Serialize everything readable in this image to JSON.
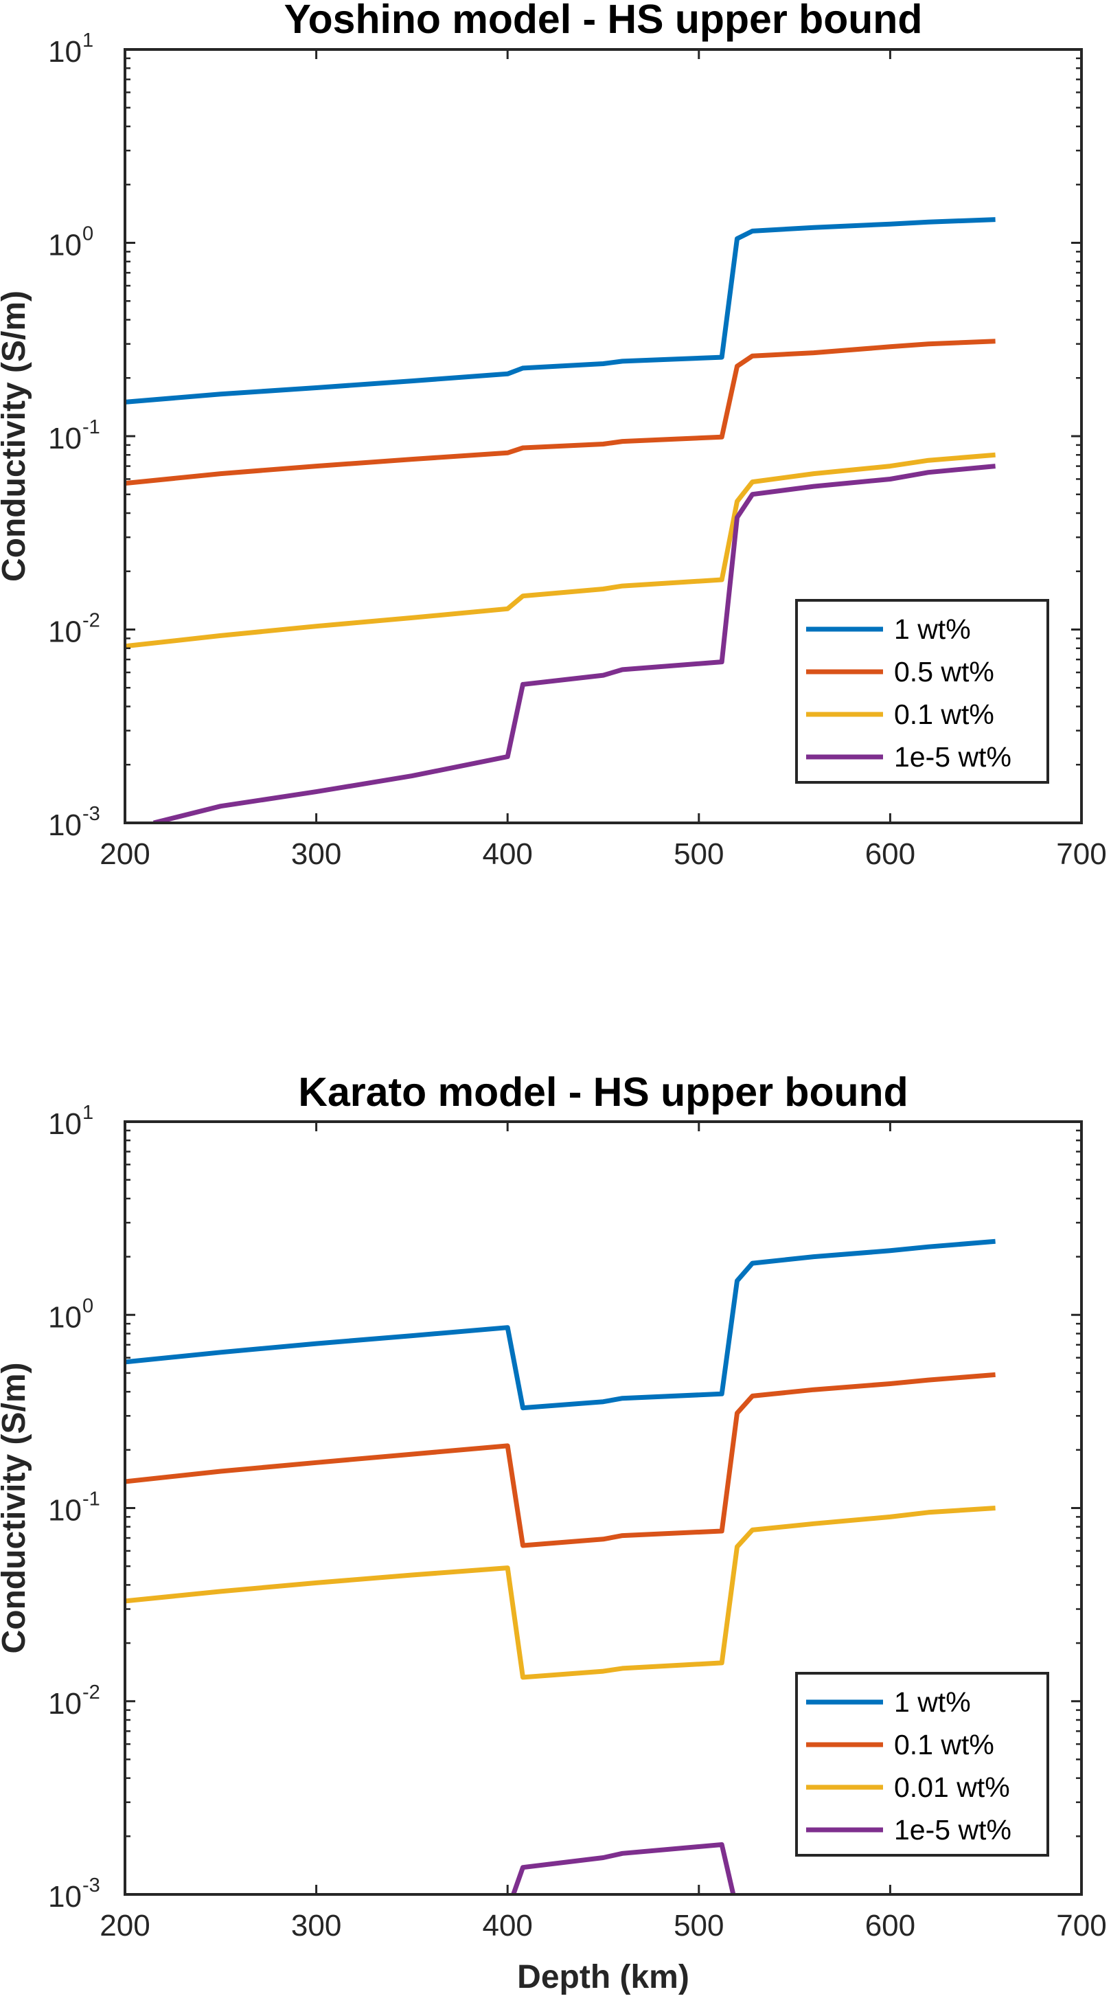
{
  "chart_data": [
    {
      "type": "line",
      "title": "Yoshino model - HS upper bound",
      "xlabel": "",
      "ylabel": "Conductivity (S/m)",
      "xlim": [
        200,
        700
      ],
      "ylim": [
        0.001,
        10
      ],
      "yscale": "log",
      "xticks": [
        "200",
        "300",
        "400",
        "500",
        "600",
        "700"
      ],
      "yticks": [
        {
          "base": "10",
          "exp": "-3"
        },
        {
          "base": "10",
          "exp": "-2"
        },
        {
          "base": "10",
          "exp": "-1"
        },
        {
          "base": "10",
          "exp": "0"
        },
        {
          "base": "10",
          "exp": "1"
        }
      ],
      "grid": false,
      "legend_position": "bottom-right",
      "series": [
        {
          "name": "1 wt%",
          "color": "#0072BD",
          "x": [
            200,
            250,
            300,
            350,
            400,
            408,
            450,
            460,
            512,
            520,
            528,
            560,
            600,
            620,
            655
          ],
          "y": [
            0.15,
            0.165,
            0.178,
            0.193,
            0.21,
            0.225,
            0.237,
            0.244,
            0.256,
            1.05,
            1.15,
            1.2,
            1.25,
            1.28,
            1.32
          ]
        },
        {
          "name": "0.5 wt%",
          "color": "#D95319",
          "x": [
            200,
            250,
            300,
            350,
            400,
            408,
            450,
            460,
            512,
            520,
            528,
            560,
            600,
            620,
            655
          ],
          "y": [
            0.057,
            0.064,
            0.07,
            0.076,
            0.082,
            0.087,
            0.091,
            0.094,
            0.099,
            0.23,
            0.26,
            0.27,
            0.29,
            0.3,
            0.31
          ]
        },
        {
          "name": "0.1 wt%",
          "color": "#EDB120",
          "x": [
            200,
            250,
            300,
            350,
            400,
            408,
            450,
            460,
            512,
            520,
            528,
            560,
            600,
            620,
            655
          ],
          "y": [
            0.0082,
            0.0093,
            0.0104,
            0.0115,
            0.0128,
            0.0149,
            0.0162,
            0.0168,
            0.0181,
            0.046,
            0.058,
            0.064,
            0.07,
            0.075,
            0.08
          ]
        },
        {
          "name": "1e-5 wt%",
          "color": "#7E2F8E",
          "x": [
            215,
            250,
            300,
            350,
            400,
            408,
            450,
            460,
            512,
            520,
            528,
            560,
            600,
            620,
            655
          ],
          "y": [
            0.001,
            0.00122,
            0.00145,
            0.00175,
            0.0022,
            0.0052,
            0.0058,
            0.0062,
            0.0068,
            0.038,
            0.05,
            0.055,
            0.06,
            0.065,
            0.07
          ]
        }
      ]
    },
    {
      "type": "line",
      "title": "Karato model - HS upper bound",
      "xlabel": "Depth (km)",
      "ylabel": "Conductivity (S/m)",
      "xlim": [
        200,
        700
      ],
      "ylim": [
        0.001,
        10
      ],
      "yscale": "log",
      "xticks": [
        "200",
        "300",
        "400",
        "500",
        "600",
        "700"
      ],
      "yticks": [
        {
          "base": "10",
          "exp": "-3"
        },
        {
          "base": "10",
          "exp": "-2"
        },
        {
          "base": "10",
          "exp": "-1"
        },
        {
          "base": "10",
          "exp": "0"
        },
        {
          "base": "10",
          "exp": "1"
        }
      ],
      "grid": false,
      "legend_position": "bottom-right",
      "series": [
        {
          "name": "1 wt%",
          "color": "#0072BD",
          "x": [
            200,
            250,
            300,
            350,
            400,
            408,
            450,
            460,
            512,
            520,
            528,
            560,
            600,
            620,
            655
          ],
          "y": [
            0.57,
            0.64,
            0.71,
            0.78,
            0.86,
            0.33,
            0.355,
            0.37,
            0.39,
            1.5,
            1.85,
            2.0,
            2.15,
            2.25,
            2.4
          ]
        },
        {
          "name": "0.1 wt%",
          "color": "#D95319",
          "x": [
            200,
            250,
            300,
            350,
            400,
            408,
            450,
            460,
            512,
            520,
            528,
            560,
            600,
            620,
            655
          ],
          "y": [
            0.137,
            0.155,
            0.172,
            0.19,
            0.21,
            0.064,
            0.069,
            0.072,
            0.076,
            0.31,
            0.38,
            0.41,
            0.44,
            0.46,
            0.49
          ]
        },
        {
          "name": "0.01 wt%",
          "color": "#EDB120",
          "x": [
            200,
            250,
            300,
            350,
            400,
            408,
            450,
            460,
            512,
            520,
            528,
            560,
            600,
            620,
            655
          ],
          "y": [
            0.033,
            0.037,
            0.041,
            0.045,
            0.049,
            0.0133,
            0.0143,
            0.0148,
            0.0158,
            0.063,
            0.077,
            0.083,
            0.09,
            0.095,
            0.1
          ]
        },
        {
          "name": "1e-5 wt%",
          "color": "#7E2F8E",
          "x": [
            403,
            408,
            450,
            460,
            512,
            518
          ],
          "y": [
            0.001,
            0.00138,
            0.00155,
            0.00163,
            0.00181,
            0.001
          ]
        }
      ]
    }
  ]
}
